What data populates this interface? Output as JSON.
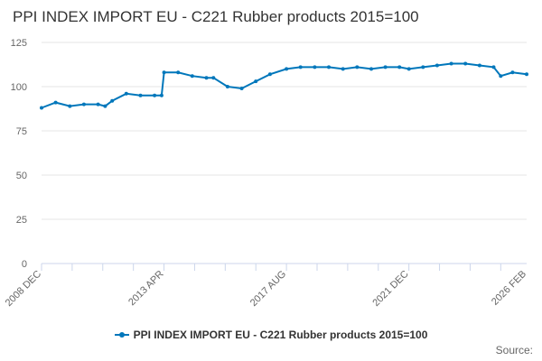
{
  "chart_data": {
    "type": "line",
    "title": "PPI INDEX IMPORT EU - C221 Rubber products 2015=100",
    "xlabel": "",
    "ylabel": "",
    "ylim": [
      0,
      125
    ],
    "yticks": [
      0,
      25,
      50,
      75,
      100,
      125
    ],
    "xtick_labels": [
      "2008 DEC",
      "2013 APR",
      "2017 AUG",
      "2021 DEC",
      "2026 FEB"
    ],
    "grid": true,
    "legend_position": "bottom",
    "line_color": "#0077bb",
    "series": [
      {
        "name": "PPI INDEX IMPORT EU - C221 Rubber products 2015=100",
        "x": [
          "2008 DEC",
          "2009 JUN",
          "2009 DEC",
          "2010 JUN",
          "2010 DEC",
          "2011 MAR",
          "2011 JUN",
          "2011 DEC",
          "2012 JUN",
          "2012 DEC",
          "2013 MAR",
          "2013 APR",
          "2013 OCT",
          "2014 APR",
          "2014 OCT",
          "2015 JAN",
          "2015 JUL",
          "2016 JAN",
          "2016 JUL",
          "2017 JAN",
          "2017 AUG",
          "2018 FEB",
          "2018 AUG",
          "2019 FEB",
          "2019 AUG",
          "2020 FEB",
          "2020 AUG",
          "2021 FEB",
          "2021 AUG",
          "2021 DEC",
          "2022 JUN",
          "2022 DEC",
          "2023 JUN",
          "2023 DEC",
          "2024 JUN",
          "2024 DEC",
          "2025 MAR",
          "2025 AUG",
          "2026 FEB"
        ],
        "values": [
          88,
          91,
          89,
          90,
          90,
          89,
          92,
          96,
          95,
          95,
          95,
          108,
          108,
          106,
          105,
          105,
          100,
          99,
          103,
          107,
          110,
          111,
          111,
          111,
          110,
          111,
          110,
          111,
          111,
          110,
          111,
          112,
          113,
          113,
          112,
          111,
          106,
          108,
          107
        ]
      }
    ]
  },
  "credits": {
    "source_label": "Source:"
  }
}
